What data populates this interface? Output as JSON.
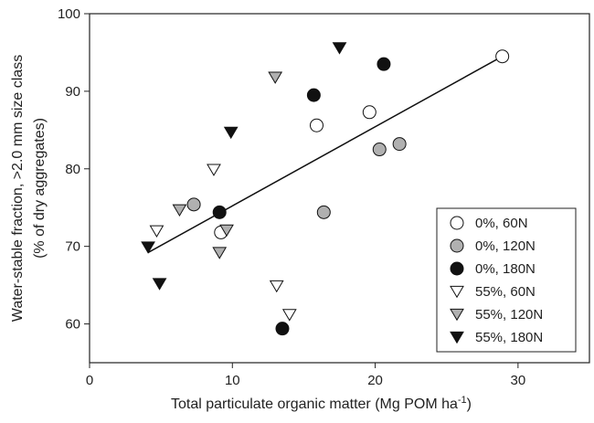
{
  "chart_data": {
    "type": "scatter",
    "x_label": {
      "text": "Total particulate organic matter (Mg POM ha",
      "superscript": "-1",
      "suffix": ")"
    },
    "y_label": [
      "Water-stable fraction, >2.0 mm size class",
      "(% of dry aggregates)"
    ],
    "xlim": [
      0,
      35
    ],
    "xticks": [
      0,
      10,
      20,
      30
    ],
    "ylim": [
      55,
      100
    ],
    "yticks": [
      60,
      70,
      80,
      90,
      100
    ],
    "legend": "lower right",
    "series": [
      {
        "name": "0%, 60N",
        "marker": "circle",
        "color": "#ffffff",
        "x": [
          28.9,
          19.6,
          15.9,
          9.2
        ],
        "values": [
          94.5,
          87.3,
          85.6,
          71.8
        ]
      },
      {
        "name": "0%, 120N",
        "marker": "circle",
        "color": "#b0b0b0",
        "x": [
          21.7,
          20.3,
          16.4,
          7.3
        ],
        "values": [
          83.2,
          82.5,
          74.4,
          75.4
        ]
      },
      {
        "name": "0%, 180N",
        "marker": "circle",
        "color": "#111111",
        "x": [
          20.6,
          15.7,
          9.1,
          13.5
        ],
        "values": [
          93.5,
          89.5,
          74.4,
          59.4
        ]
      },
      {
        "name": "55%, 60N",
        "marker": "triangle",
        "color": "#ffffff",
        "x": [
          8.7,
          4.7,
          13.1,
          14.0
        ],
        "values": [
          79.9,
          72.0,
          64.9,
          61.2
        ]
      },
      {
        "name": "55%, 120N",
        "marker": "triangle",
        "color": "#b0b0b0",
        "x": [
          13.0,
          6.3,
          9.6,
          9.1
        ],
        "values": [
          91.8,
          74.7,
          72.1,
          69.2
        ]
      },
      {
        "name": "55%, 180N",
        "marker": "triangle",
        "color": "#111111",
        "x": [
          17.5,
          9.9,
          4.1,
          4.9
        ],
        "values": [
          95.6,
          84.7,
          69.9,
          65.2
        ]
      }
    ],
    "fit_line": {
      "x": [
        4.1,
        28.9
      ],
      "values": [
        69.2,
        94.5
      ]
    }
  }
}
